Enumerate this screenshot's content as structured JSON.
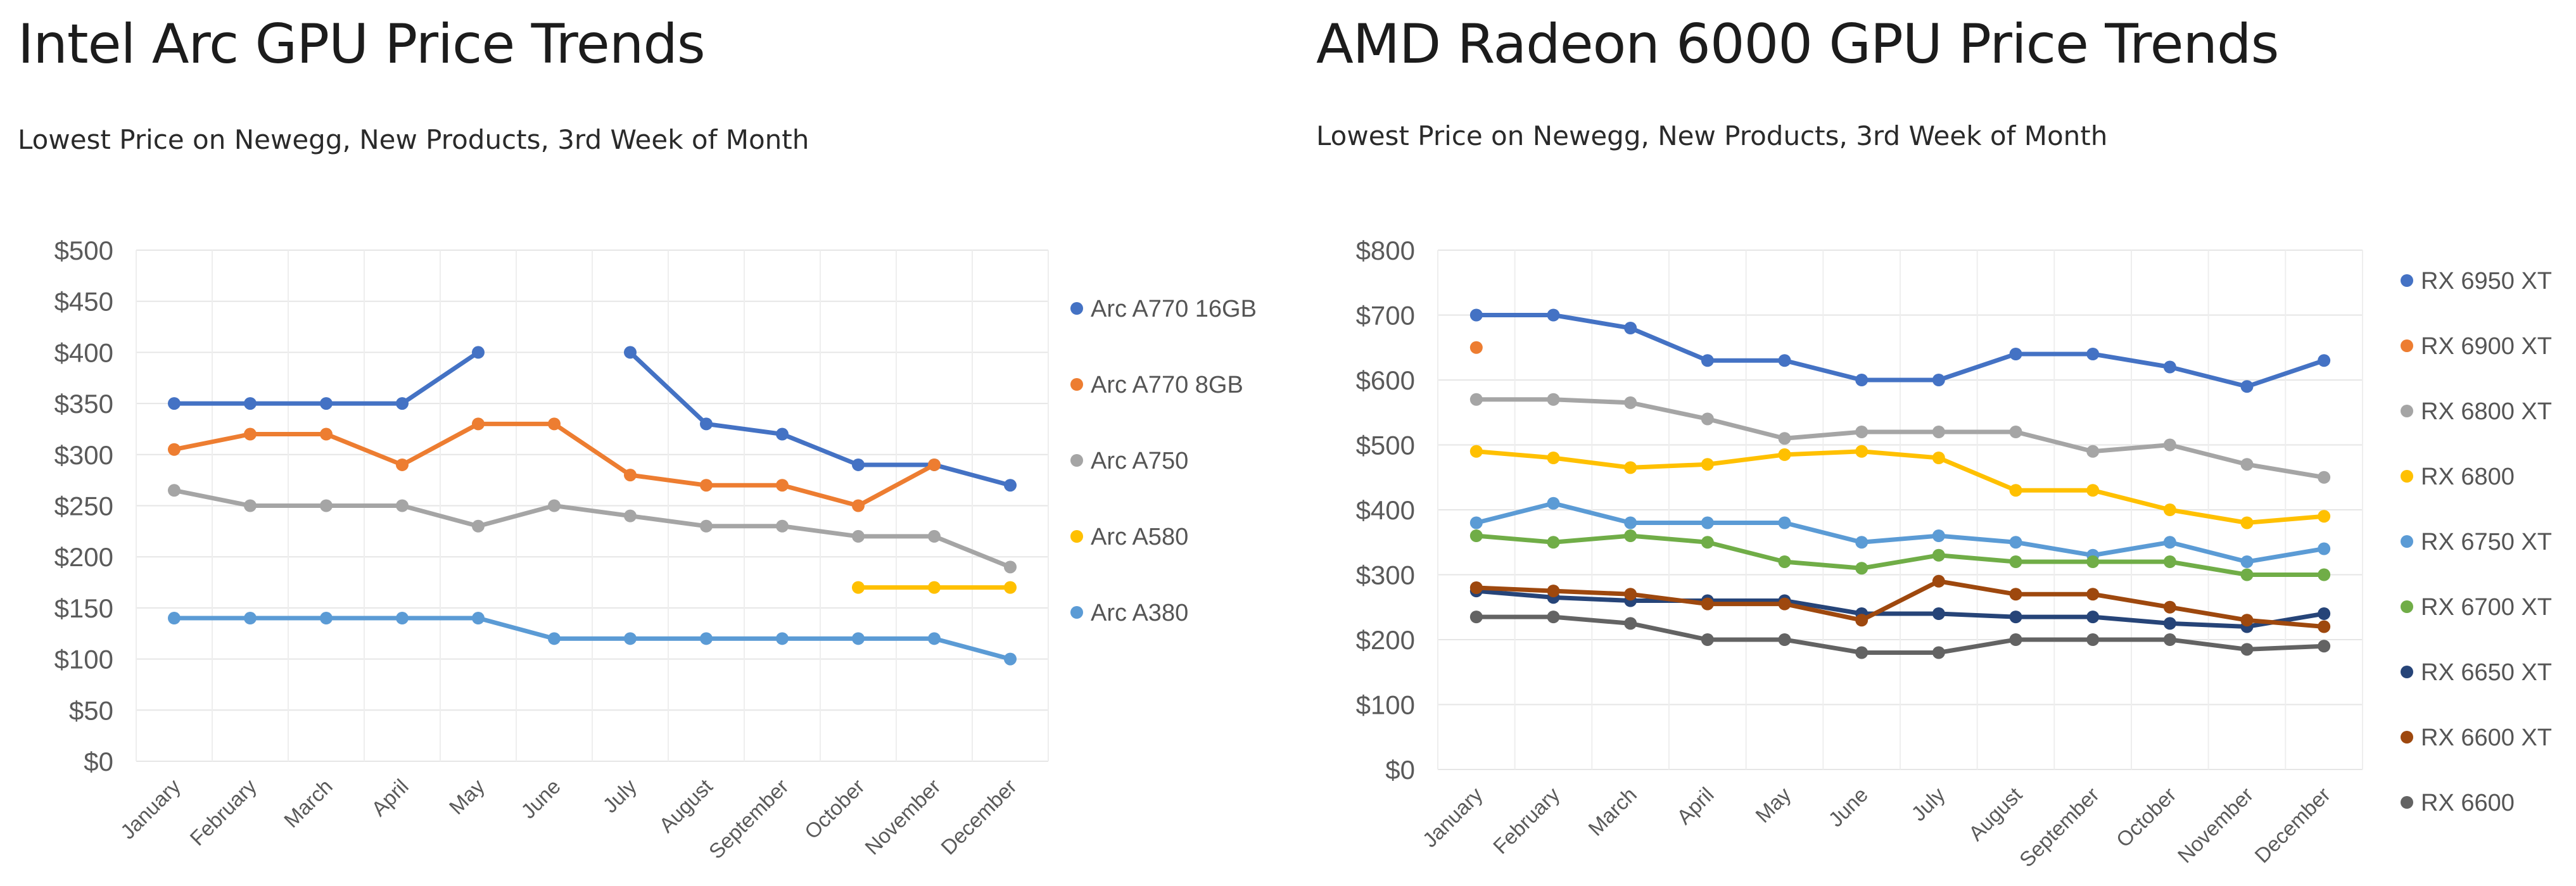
{
  "charts": [
    {
      "title": "Intel Arc GPU Price Trends",
      "subtitle": "Lowest Price on Newegg, New Products, 3rd Week of Month"
    },
    {
      "title": "AMD Radeon 6000 GPU Price Trends",
      "subtitle": "Lowest Price on Newegg, New Products, 3rd Week of Month"
    }
  ],
  "chart_data": [
    {
      "type": "line",
      "title": "Intel Arc GPU Price Trends",
      "subtitle": "Lowest Price on Newegg, New Products, 3rd Week of Month",
      "xlabel": "",
      "ylabel": "",
      "categories": [
        "January",
        "February",
        "March",
        "April",
        "May",
        "June",
        "July",
        "August",
        "September",
        "October",
        "November",
        "December"
      ],
      "ylim": [
        0,
        500
      ],
      "yticks": [
        0,
        50,
        100,
        150,
        200,
        250,
        300,
        350,
        400,
        450,
        500
      ],
      "ytick_labels": [
        "$0",
        "$50",
        "$100",
        "$150",
        "$200",
        "$250",
        "$300",
        "$350",
        "$400",
        "$450",
        "$500"
      ],
      "grid": true,
      "legend_position": "right",
      "series": [
        {
          "name": "Arc A770 16GB",
          "color": "#4472C4",
          "values": [
            350,
            350,
            350,
            350,
            400,
            null,
            400,
            330,
            320,
            290,
            290,
            270
          ]
        },
        {
          "name": "Arc A770 8GB",
          "color": "#ED7D31",
          "values": [
            305,
            320,
            320,
            290,
            330,
            330,
            280,
            270,
            270,
            250,
            290,
            null
          ]
        },
        {
          "name": "Arc A750",
          "color": "#A5A5A5",
          "values": [
            265,
            250,
            250,
            250,
            230,
            250,
            240,
            230,
            230,
            220,
            220,
            190
          ]
        },
        {
          "name": "Arc A580",
          "color": "#FFC000",
          "values": [
            null,
            null,
            null,
            null,
            null,
            null,
            null,
            null,
            null,
            170,
            170,
            170
          ]
        },
        {
          "name": "Arc A380",
          "color": "#5B9BD5",
          "values": [
            140,
            140,
            140,
            140,
            140,
            120,
            120,
            120,
            120,
            120,
            120,
            100
          ]
        }
      ]
    },
    {
      "type": "line",
      "title": "AMD Radeon 6000 GPU Price Trends",
      "subtitle": "Lowest Price on Newegg, New Products, 3rd Week of Month",
      "xlabel": "",
      "ylabel": "",
      "categories": [
        "January",
        "February",
        "March",
        "April",
        "May",
        "June",
        "July",
        "August",
        "September",
        "October",
        "November",
        "December"
      ],
      "ylim": [
        0,
        800
      ],
      "yticks": [
        0,
        100,
        200,
        300,
        400,
        500,
        600,
        700,
        800
      ],
      "ytick_labels": [
        "$0",
        "$100",
        "$200",
        "$300",
        "$400",
        "$500",
        "$600",
        "$700",
        "$800"
      ],
      "grid": true,
      "legend_position": "right",
      "series": [
        {
          "name": "RX 6950 XT",
          "color": "#4472C4",
          "values": [
            700,
            700,
            680,
            630,
            630,
            600,
            600,
            640,
            640,
            620,
            590,
            630
          ]
        },
        {
          "name": "RX 6900 XT",
          "color": "#ED7D31",
          "values": [
            650,
            null,
            null,
            null,
            null,
            null,
            null,
            null,
            null,
            null,
            null,
            null
          ]
        },
        {
          "name": "RX 6800 XT",
          "color": "#A5A5A5",
          "values": [
            570,
            570,
            565,
            540,
            510,
            520,
            520,
            520,
            490,
            500,
            470,
            450
          ]
        },
        {
          "name": "RX 6800",
          "color": "#FFC000",
          "values": [
            490,
            480,
            465,
            470,
            485,
            490,
            480,
            430,
            430,
            400,
            380,
            390
          ]
        },
        {
          "name": "RX 6750 XT",
          "color": "#5B9BD5",
          "values": [
            380,
            410,
            380,
            380,
            380,
            350,
            360,
            350,
            330,
            350,
            320,
            340
          ]
        },
        {
          "name": "RX 6700 XT",
          "color": "#70AD47",
          "values": [
            360,
            350,
            360,
            350,
            320,
            310,
            330,
            320,
            320,
            320,
            300,
            300
          ]
        },
        {
          "name": "RX 6650 XT",
          "color": "#264478",
          "values": [
            275,
            265,
            260,
            260,
            260,
            240,
            240,
            235,
            235,
            225,
            220,
            240
          ]
        },
        {
          "name": "RX 6600 XT",
          "color": "#9E480E",
          "values": [
            280,
            275,
            270,
            255,
            255,
            230,
            290,
            270,
            270,
            250,
            230,
            220
          ]
        },
        {
          "name": "RX 6600",
          "color": "#636363",
          "values": [
            235,
            235,
            225,
            200,
            200,
            180,
            180,
            200,
            200,
            200,
            185,
            190
          ]
        }
      ]
    }
  ]
}
